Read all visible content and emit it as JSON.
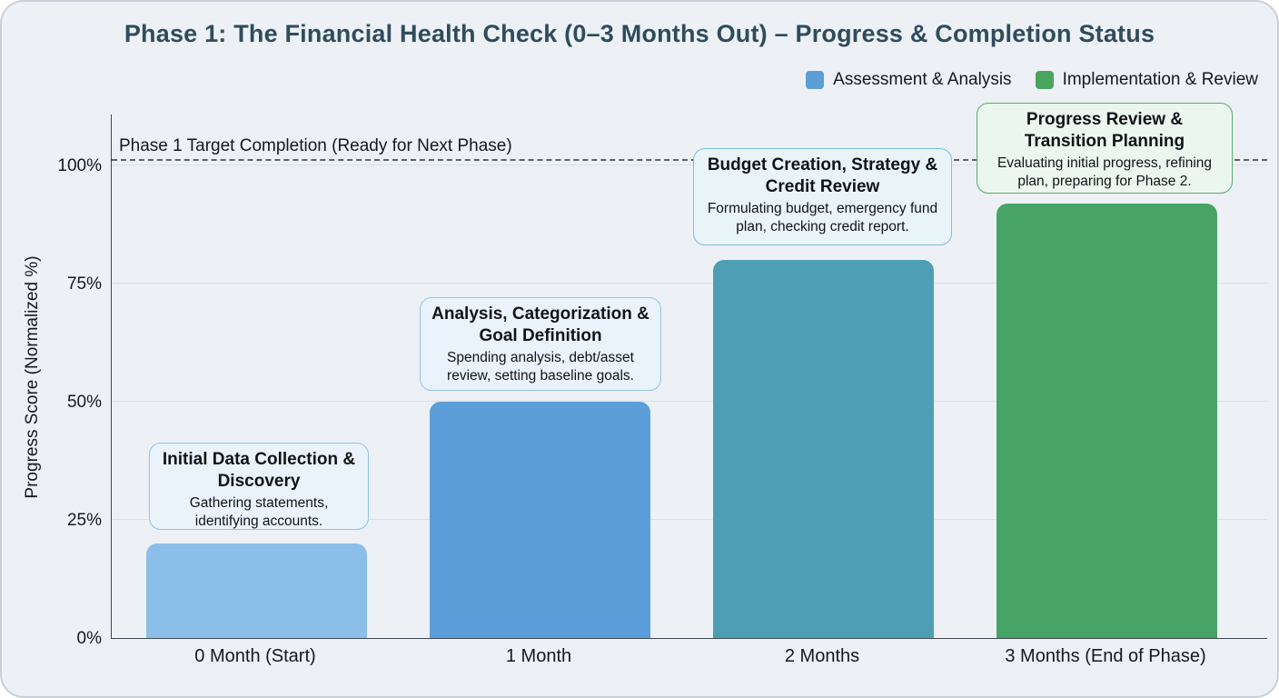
{
  "chart_data": {
    "type": "bar",
    "title": "Phase 1: The Financial Health Check (0–3 Months Out) – Progress & Completion Status",
    "ylabel": "Progress Score (Normalized %)",
    "xlabel": "",
    "categories": [
      "0 Month (Start)",
      "1 Month",
      "2 Months",
      "3 Months (End of Phase)"
    ],
    "values": [
      20,
      50,
      80,
      92
    ],
    "bar_colors": [
      "#8bbee9",
      "#5c9ed9",
      "#4f9fb4",
      "#47a466"
    ],
    "ylim": [
      0,
      111
    ],
    "ytick_labels": [
      "0%",
      "25%",
      "50%",
      "75%",
      "100%"
    ],
    "grid": true,
    "legend_position": "upper right",
    "legend": [
      {
        "label": "Assessment & Analysis",
        "color": "#5b9fd4"
      },
      {
        "label": "Implementation & Review",
        "color": "#4ba45f"
      }
    ],
    "target_line": {
      "value": 101,
      "label": "Phase 1 Target Completion (Ready for Next Phase)"
    },
    "annotations": [
      {
        "title": "Initial Data Collection & Discovery",
        "body": "Gathering statements, identifying accounts.",
        "border": "#8fc3e8",
        "bg": "#eaf3fb"
      },
      {
        "title": "Analysis, Categorization & Goal Definition",
        "body": "Spending analysis, debt/asset review, setting baseline goals.",
        "border": "#8fc3e8",
        "bg": "#eaf3fb"
      },
      {
        "title": "Budget Creation, Strategy & Credit Review",
        "body": "Formulating budget, emergency fund plan, checking credit report.",
        "border": "#7fbcd9",
        "bg": "#e9f4f8"
      },
      {
        "title": "Progress Review & Transition Planning",
        "body": "Evaluating initial progress, refining plan, preparing for Phase 2.",
        "border": "#5aaa6e",
        "bg": "#ebf6ee"
      }
    ]
  }
}
